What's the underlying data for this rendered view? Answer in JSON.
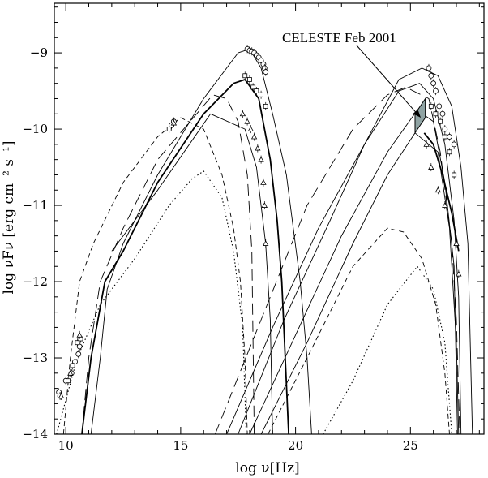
{
  "chart_data": {
    "type": "line",
    "title": "",
    "xlabel": "log ν[Hz]",
    "ylabel": "log νFν [erg cm⁻² s⁻¹]",
    "xlim": [
      9.5,
      28.2
    ],
    "ylim": [
      -14,
      -8.35
    ],
    "xticks": [
      10,
      15,
      20,
      25
    ],
    "yticks": [
      -9,
      -10,
      -11,
      -12,
      -13,
      -14
    ],
    "grid": false,
    "annotation": {
      "text": "CELESTE Feb 2001",
      "target": {
        "x": 25.45,
        "y": -9.85
      }
    },
    "series": [
      {
        "style": "solid-thin",
        "points": [
          [
            11.1,
            -14
          ],
          [
            11.5,
            -13
          ],
          [
            11.8,
            -12.1
          ],
          [
            12.5,
            -11.5
          ],
          [
            14,
            -10.6
          ],
          [
            16,
            -9.6
          ],
          [
            17.5,
            -9
          ],
          [
            18,
            -8.95
          ],
          [
            18.5,
            -9.2
          ],
          [
            19,
            -9.8
          ],
          [
            19.6,
            -10.6
          ],
          [
            20.2,
            -12
          ],
          [
            20.5,
            -13
          ],
          [
            20.7,
            -14
          ]
        ]
      },
      {
        "style": "solid-thick",
        "points": [
          [
            10.7,
            -14
          ],
          [
            11.1,
            -13
          ],
          [
            11.7,
            -12
          ],
          [
            12.5,
            -11.6
          ],
          [
            14,
            -10.7
          ],
          [
            16,
            -9.8
          ],
          [
            17.3,
            -9.4
          ],
          [
            17.8,
            -9.35
          ],
          [
            18.4,
            -9.6
          ],
          [
            18.9,
            -10.4
          ],
          [
            19.2,
            -11.2
          ],
          [
            19.4,
            -12
          ],
          [
            19.7,
            -14
          ]
        ]
      },
      {
        "style": "solid-thin",
        "points": [
          [
            12,
            -11.6
          ],
          [
            14,
            -10.8
          ],
          [
            16.3,
            -9.8
          ],
          [
            17.8,
            -10
          ],
          [
            18.3,
            -10.5
          ],
          [
            18.7,
            -11.5
          ],
          [
            18.9,
            -12.5
          ],
          [
            19,
            -14
          ]
        ]
      },
      {
        "style": "dashed-long",
        "points": [
          [
            10.7,
            -14
          ],
          [
            11,
            -13
          ],
          [
            11.5,
            -12
          ],
          [
            12.5,
            -11.3
          ],
          [
            14,
            -10.4
          ],
          [
            16.4,
            -9.55
          ],
          [
            17,
            -9.6
          ],
          [
            17.5,
            -9.9
          ],
          [
            17.9,
            -10.6
          ],
          [
            18.1,
            -11.6
          ],
          [
            18.2,
            -14
          ]
        ]
      },
      {
        "style": "dashed-short",
        "points": [
          [
            9.9,
            -14
          ],
          [
            10.2,
            -13
          ],
          [
            10.6,
            -12
          ],
          [
            11.2,
            -11.5
          ],
          [
            12.5,
            -10.7
          ],
          [
            14,
            -10.1
          ],
          [
            15,
            -9.85
          ],
          [
            16,
            -10
          ],
          [
            16.8,
            -10.6
          ],
          [
            17.3,
            -11.3
          ],
          [
            17.6,
            -12
          ],
          [
            17.8,
            -13
          ],
          [
            17.9,
            -14
          ]
        ]
      },
      {
        "style": "dotted",
        "points": [
          [
            9.6,
            -14
          ],
          [
            10.5,
            -13
          ],
          [
            11.5,
            -12.3
          ],
          [
            13,
            -11.7
          ],
          [
            14.5,
            -11
          ],
          [
            15.5,
            -10.65
          ],
          [
            16,
            -10.55
          ],
          [
            16.8,
            -10.9
          ],
          [
            17.3,
            -11.6
          ],
          [
            17.7,
            -12.6
          ],
          [
            17.85,
            -14
          ]
        ]
      },
      {
        "style": "solid-thin",
        "points": [
          [
            17.5,
            -14
          ],
          [
            19.5,
            -12.5
          ],
          [
            21.5,
            -11.2
          ],
          [
            23,
            -10.2
          ],
          [
            24.5,
            -9.35
          ],
          [
            25.5,
            -9.2
          ],
          [
            26.2,
            -9.3
          ],
          [
            26.8,
            -9.7
          ],
          [
            27.2,
            -10.5
          ],
          [
            27.5,
            -11.5
          ],
          [
            27.7,
            -14
          ]
        ]
      },
      {
        "style": "solid-thin",
        "points": [
          [
            17,
            -14
          ],
          [
            19,
            -12.6
          ],
          [
            21,
            -11.3
          ],
          [
            23,
            -10.2
          ],
          [
            24.5,
            -9.5
          ],
          [
            25.4,
            -9.4
          ],
          [
            26,
            -9.6
          ],
          [
            26.5,
            -10.2
          ],
          [
            26.9,
            -11.2
          ],
          [
            27.1,
            -12.2
          ],
          [
            27.2,
            -14
          ]
        ]
      },
      {
        "style": "solid-thin",
        "points": [
          [
            18,
            -14
          ],
          [
            20,
            -12.7
          ],
          [
            22,
            -11.4
          ],
          [
            24,
            -10.3
          ],
          [
            25.3,
            -9.75
          ],
          [
            26,
            -9.9
          ],
          [
            26.5,
            -10.7
          ],
          [
            26.9,
            -11.8
          ],
          [
            27.05,
            -14
          ]
        ]
      },
      {
        "style": "solid-thin",
        "points": [
          [
            18.5,
            -14
          ],
          [
            20.5,
            -12.8
          ],
          [
            22.5,
            -11.5
          ],
          [
            24,
            -10.6
          ],
          [
            25.2,
            -10.05
          ],
          [
            26.2,
            -10.3
          ],
          [
            26.7,
            -11.3
          ],
          [
            27,
            -12.8
          ],
          [
            27.1,
            -14
          ]
        ]
      },
      {
        "style": "dashed-long",
        "points": [
          [
            16.5,
            -14
          ],
          [
            18.5,
            -12.5
          ],
          [
            20.5,
            -11
          ],
          [
            22.5,
            -10
          ],
          [
            24,
            -9.55
          ],
          [
            24.8,
            -9.45
          ],
          [
            25.8,
            -9.6
          ],
          [
            26.3,
            -10.3
          ],
          [
            26.8,
            -11.5
          ],
          [
            27,
            -12.5
          ],
          [
            27.15,
            -14
          ]
        ]
      },
      {
        "style": "dashed-short",
        "points": [
          [
            18.8,
            -14
          ],
          [
            20.5,
            -13
          ],
          [
            22.5,
            -11.8
          ],
          [
            24,
            -11.3
          ],
          [
            24.7,
            -11.35
          ],
          [
            25.5,
            -11.7
          ],
          [
            26.1,
            -12.3
          ],
          [
            26.5,
            -13.2
          ],
          [
            26.7,
            -14
          ]
        ]
      },
      {
        "style": "dotted",
        "points": [
          [
            21.2,
            -14
          ],
          [
            22.5,
            -13.3
          ],
          [
            24,
            -12.3
          ],
          [
            25.3,
            -11.8
          ],
          [
            26,
            -12.1
          ],
          [
            26.5,
            -12.8
          ],
          [
            26.8,
            -14
          ]
        ]
      },
      {
        "style": "solid-thick",
        "points": [
          [
            25.6,
            -10.05
          ],
          [
            26,
            -10.2
          ],
          [
            26.4,
            -10.6
          ],
          [
            26.8,
            -11.1
          ],
          [
            27.1,
            -11.6
          ]
        ]
      }
    ],
    "celeste_band": [
      [
        25.2,
        -9.8
      ],
      [
        25.65,
        -9.6
      ],
      [
        25.65,
        -9.85
      ],
      [
        25.2,
        -10.05
      ]
    ],
    "markers": [
      {
        "shape": "circle",
        "points": [
          [
            9.7,
            -13.45
          ],
          [
            9.75,
            -13.5
          ],
          [
            10,
            -13.3
          ],
          [
            10.25,
            -13.2
          ],
          [
            10.4,
            -13.05
          ],
          [
            10.55,
            -12.95
          ],
          [
            10.6,
            -12.85
          ],
          [
            14.6,
            -9.95
          ],
          [
            14.7,
            -9.9
          ],
          [
            17.9,
            -8.95
          ],
          [
            18,
            -8.97
          ],
          [
            18.1,
            -8.98
          ],
          [
            18.2,
            -9
          ],
          [
            18.3,
            -9.03
          ],
          [
            18.4,
            -9.06
          ],
          [
            18.5,
            -9.1
          ],
          [
            18.6,
            -9.15
          ],
          [
            18.65,
            -9.2
          ],
          [
            18.7,
            -9.25
          ],
          [
            25.8,
            -9.2
          ],
          [
            25.9,
            -9.3
          ],
          [
            26,
            -9.4
          ],
          [
            26.1,
            -9.5
          ],
          [
            26.25,
            -9.7
          ],
          [
            26.4,
            -9.8
          ],
          [
            26.5,
            -10
          ],
          [
            26.7,
            -10.1
          ],
          [
            26.9,
            -10.2
          ]
        ]
      },
      {
        "shape": "square",
        "points": [
          [
            10.1,
            -13.3
          ],
          [
            10.3,
            -13.1
          ],
          [
            10.5,
            -12.8
          ],
          [
            10.65,
            -12.75
          ],
          [
            14.5,
            -10
          ],
          [
            17.8,
            -9.3
          ],
          [
            18,
            -9.35
          ],
          [
            18.15,
            -9.45
          ],
          [
            18.3,
            -9.5
          ],
          [
            18.5,
            -9.55
          ],
          [
            18.7,
            -9.7
          ],
          [
            25.9,
            -9.7
          ],
          [
            26.1,
            -9.8
          ],
          [
            26.3,
            -9.9
          ],
          [
            26.5,
            -10.1
          ],
          [
            26.7,
            -10.3
          ],
          [
            26.9,
            -10.6
          ]
        ]
      },
      {
        "shape": "triangle",
        "points": [
          [
            9.8,
            -13.5
          ],
          [
            10.2,
            -13.2
          ],
          [
            10.6,
            -12.7
          ],
          [
            14.7,
            -9.92
          ],
          [
            17.7,
            -9.8
          ],
          [
            17.9,
            -9.9
          ],
          [
            18.05,
            -10
          ],
          [
            18.2,
            -10.1
          ],
          [
            18.35,
            -10.25
          ],
          [
            18.5,
            -10.4
          ],
          [
            18.6,
            -10.7
          ],
          [
            18.65,
            -11
          ],
          [
            18.7,
            -11.5
          ],
          [
            25.7,
            -10.2
          ],
          [
            25.9,
            -10.5
          ],
          [
            26.2,
            -10.8
          ],
          [
            26.5,
            -11
          ],
          [
            27,
            -11.5
          ],
          [
            27.1,
            -11.9
          ]
        ]
      }
    ]
  }
}
